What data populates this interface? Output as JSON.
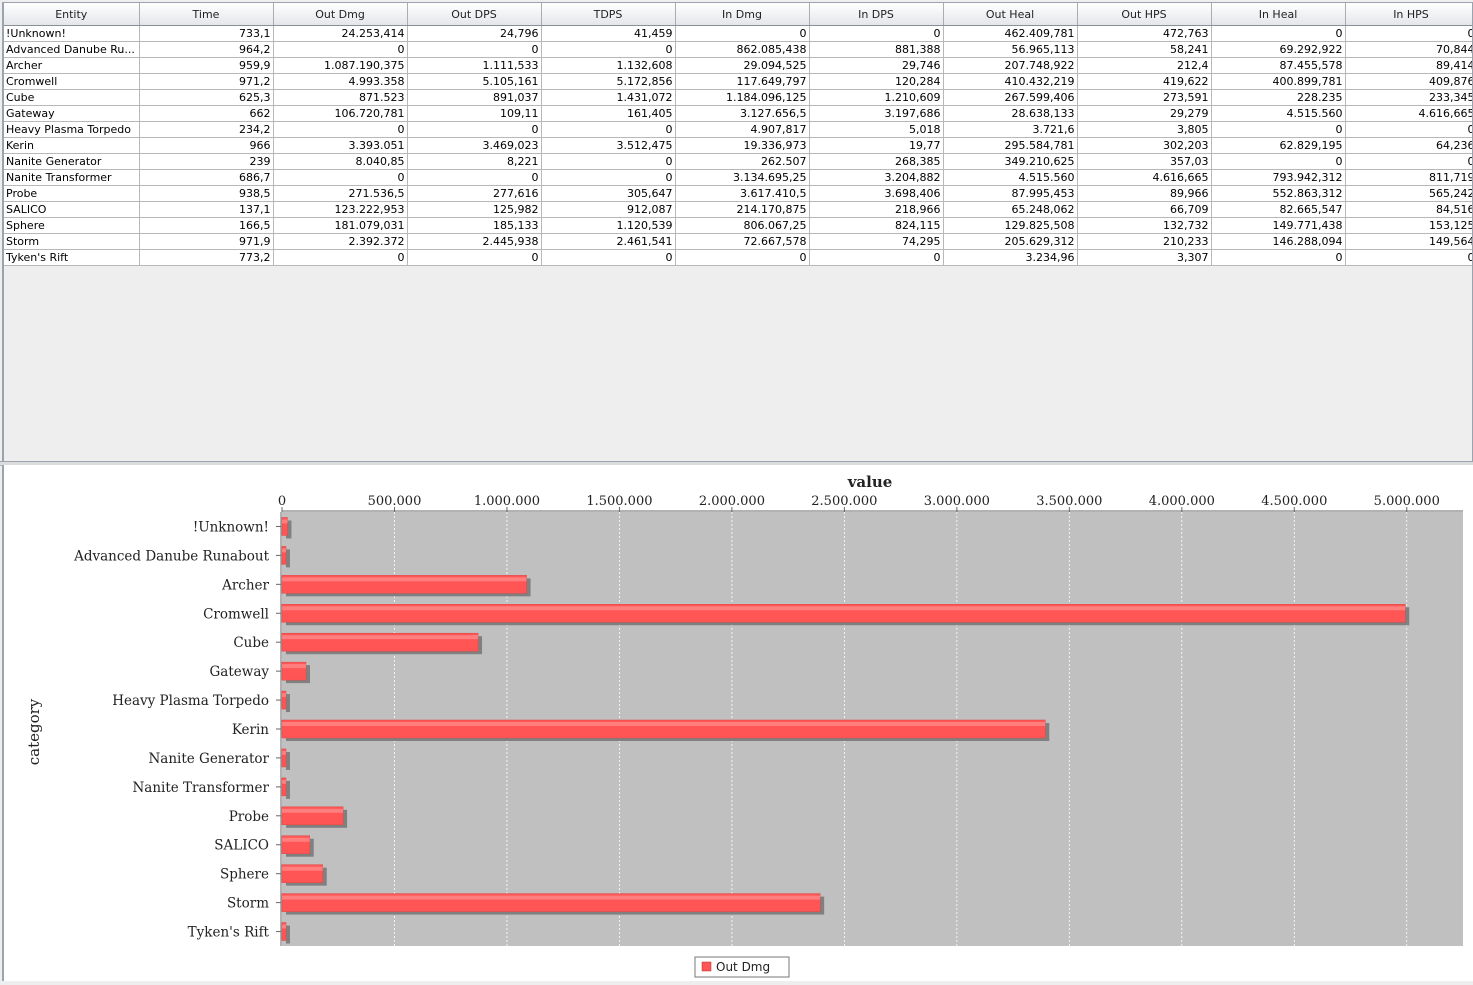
{
  "table": {
    "columns": [
      "Entity",
      "Time",
      "Out Dmg",
      "Out DPS",
      "TDPS",
      "In Dmg",
      "In DPS",
      "Out Heal",
      "Out HPS",
      "In Heal",
      "In HPS"
    ],
    "rows": [
      [
        "!Unknown!",
        "733,1",
        "24.253,414",
        "24,796",
        "41,459",
        "0",
        "0",
        "462.409,781",
        "472,763",
        "0",
        "0"
      ],
      [
        "Advanced Danube Ru...",
        "964,2",
        "0",
        "0",
        "0",
        "862.085,438",
        "881,388",
        "56.965,113",
        "58,241",
        "69.292,922",
        "70,844"
      ],
      [
        "Archer",
        "959,9",
        "1.087.190,375",
        "1.111,533",
        "1.132,608",
        "29.094,525",
        "29,746",
        "207.748,922",
        "212,4",
        "87.455,578",
        "89,414"
      ],
      [
        "Cromwell",
        "971,2",
        "4.993.358",
        "5.105,161",
        "5.172,856",
        "117.649,797",
        "120,284",
        "410.432,219",
        "419,622",
        "400.899,781",
        "409,876"
      ],
      [
        "Cube",
        "625,3",
        "871.523",
        "891,037",
        "1.431,072",
        "1.184.096,125",
        "1.210,609",
        "267.599,406",
        "273,591",
        "228.235",
        "233,345"
      ],
      [
        "Gateway",
        "662",
        "106.720,781",
        "109,11",
        "161,405",
        "3.127.656,5",
        "3.197,686",
        "28.638,133",
        "29,279",
        "4.515.560",
        "4.616,665"
      ],
      [
        "Heavy Plasma Torpedo",
        "234,2",
        "0",
        "0",
        "0",
        "4.907,817",
        "5,018",
        "3.721,6",
        "3,805",
        "0",
        "0"
      ],
      [
        "Kerin",
        "966",
        "3.393.051",
        "3.469,023",
        "3.512,475",
        "19.336,973",
        "19,77",
        "295.584,781",
        "302,203",
        "62.829,195",
        "64,236"
      ],
      [
        "Nanite Generator",
        "239",
        "8.040,85",
        "8,221",
        "0",
        "262.507",
        "268,385",
        "349.210,625",
        "357,03",
        "0",
        "0"
      ],
      [
        "Nanite Transformer",
        "686,7",
        "0",
        "0",
        "0",
        "3.134.695,25",
        "3.204,882",
        "4.515.560",
        "4.616,665",
        "793.942,312",
        "811,719"
      ],
      [
        "Probe",
        "938,5",
        "271.536,5",
        "277,616",
        "305,647",
        "3.617.410,5",
        "3.698,406",
        "87.995,453",
        "89,966",
        "552.863,312",
        "565,242"
      ],
      [
        "SALICO",
        "137,1",
        "123.222,953",
        "125,982",
        "912,087",
        "214.170,875",
        "218,966",
        "65.248,062",
        "66,709",
        "82.665,547",
        "84,516"
      ],
      [
        "Sphere",
        "166,5",
        "181.079,031",
        "185,133",
        "1.120,539",
        "806.067,25",
        "824,115",
        "129.825,508",
        "132,732",
        "149.771,438",
        "153,125"
      ],
      [
        "Storm",
        "971,9",
        "2.392.372",
        "2.445,938",
        "2.461,541",
        "72.667,578",
        "74,295",
        "205.629,312",
        "210,233",
        "146.288,094",
        "149,564"
      ],
      [
        "Tyken's Rift",
        "773,2",
        "0",
        "0",
        "0",
        "0",
        "0",
        "3.234,96",
        "3,307",
        "0",
        "0"
      ]
    ]
  },
  "chart_data": {
    "type": "bar",
    "orientation": "horizontal",
    "title": "",
    "xlabel": "value",
    "ylabel": "category",
    "xlim": [
      0,
      5250000
    ],
    "ticks": [
      0,
      500000,
      1000000,
      1500000,
      2000000,
      2500000,
      3000000,
      3500000,
      4000000,
      4500000,
      5000000
    ],
    "tick_labels": [
      "0",
      "500.000",
      "1.000.000",
      "1.500.000",
      "2.000.000",
      "2.500.000",
      "3.000.000",
      "3.500.000",
      "4.000.000",
      "4.500.000",
      "5.000.000"
    ],
    "categories": [
      "!Unknown!",
      "Advanced Danube Runabout",
      "Archer",
      "Cromwell",
      "Cube",
      "Gateway",
      "Heavy Plasma Torpedo",
      "Kerin",
      "Nanite Generator",
      "Nanite Transformer",
      "Probe",
      "SALICO",
      "Sphere",
      "Storm",
      "Tyken's Rift"
    ],
    "series": [
      {
        "name": "Out Dmg",
        "color": "#ff5555",
        "values": [
          24253.414,
          0,
          1087190.375,
          4993358,
          871523,
          106720.781,
          0,
          3393051,
          8040.85,
          0,
          271536.5,
          123222.953,
          181079.031,
          2392372,
          0
        ]
      }
    ],
    "legend": "bottom-center",
    "grid": true,
    "plot_background": "#c0c0c0"
  }
}
